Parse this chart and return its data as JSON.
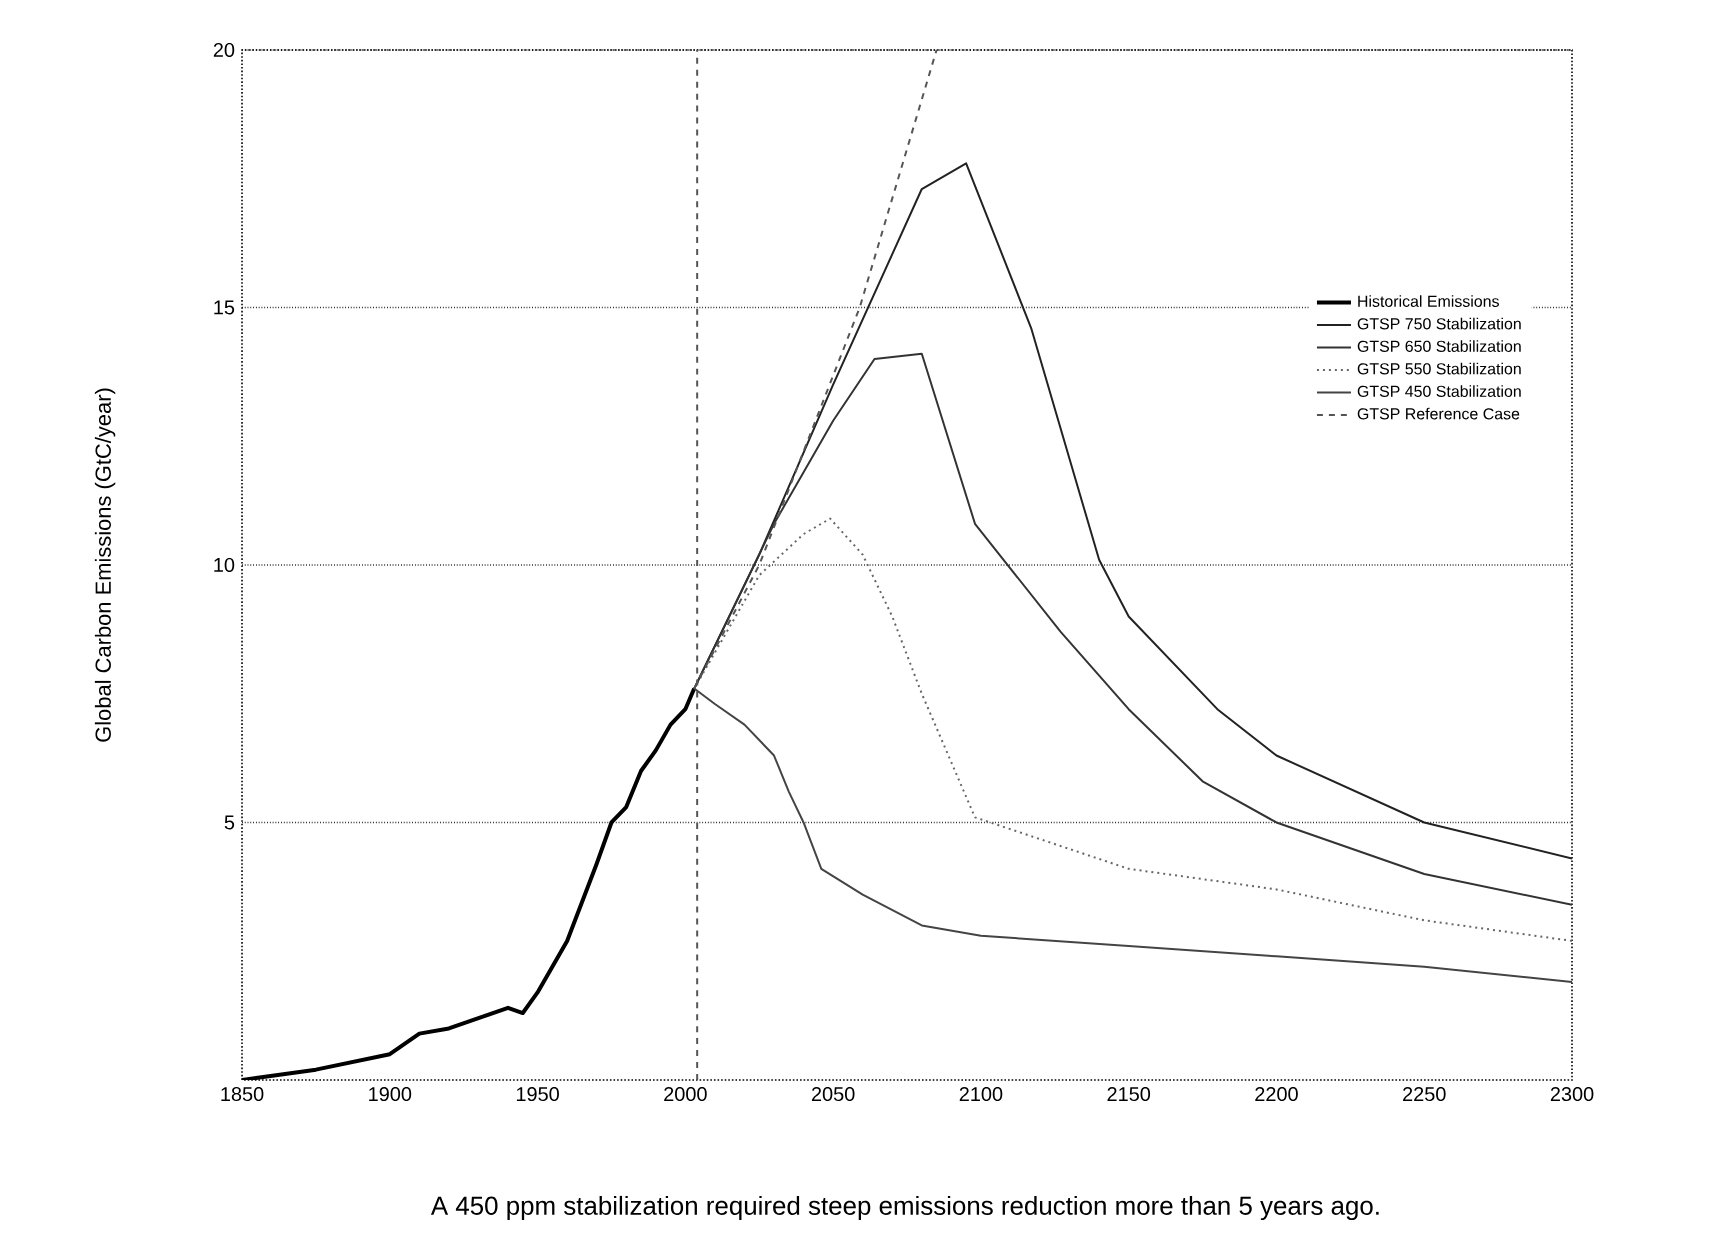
{
  "chart_data": {
    "type": "line",
    "ylabel": "Global Carbon Emissions (GtC/year)",
    "annotations": [
      "A 450 ppm stabilization required steep emissions reduction more than 5 years ago."
    ],
    "xlim": [
      1850,
      2300
    ],
    "xticks": [
      1850,
      1900,
      1950,
      2000,
      2050,
      2100,
      2150,
      2200,
      2250,
      2300
    ],
    "ylim": [
      0,
      20
    ],
    "yticks": [
      5,
      10,
      15,
      20
    ],
    "grid": "y",
    "legend": "right",
    "marker": "none",
    "ref_lines": [
      {
        "axis": "x",
        "value": 2004,
        "line_style": "dashed",
        "color": "#555555"
      }
    ],
    "series": [
      {
        "name": "Historical Emissions",
        "color": "#000000",
        "line_style": "solid",
        "x": [
          1850,
          1875,
          1900,
          1910,
          1920,
          1930,
          1940,
          1945,
          1950,
          1960,
          1970,
          1975,
          1980,
          1985,
          1990,
          1995,
          2000,
          2003
        ],
        "values": [
          0,
          0.2,
          0.5,
          0.9,
          1.0,
          1.2,
          1.4,
          1.3,
          1.7,
          2.7,
          4.2,
          5.0,
          5.3,
          6.0,
          6.4,
          6.9,
          7.2,
          7.6
        ]
      },
      {
        "name": "GTSP 750 Stabilization",
        "color": "#222222",
        "line_style": "solid",
        "x": [
          2003,
          2025,
          2050,
          2080,
          2095,
          2117,
          2140,
          2150,
          2180,
          2200,
          2250,
          2300
        ],
        "values": [
          7.6,
          10.2,
          13.5,
          17.3,
          17.8,
          14.6,
          10.1,
          9.0,
          7.2,
          6.3,
          5.0,
          4.3
        ]
      },
      {
        "name": "GTSP 650 Stabilization",
        "color": "#333333",
        "line_style": "solid",
        "x": [
          2003,
          2030,
          2050,
          2064,
          2080,
          2098,
          2127,
          2150,
          2175,
          2200,
          2250,
          2300
        ],
        "values": [
          7.6,
          10.8,
          12.8,
          14.0,
          14.1,
          10.8,
          8.7,
          7.2,
          5.8,
          5.0,
          4.0,
          3.4
        ]
      },
      {
        "name": "GTSP 550 Stabilization",
        "color": "#666666",
        "line_style": "dotted",
        "x": [
          2003,
          2025,
          2040,
          2049,
          2060,
          2070,
          2080,
          2098,
          2150,
          2200,
          2250,
          2300
        ],
        "values": [
          7.6,
          9.8,
          10.6,
          10.9,
          10.2,
          9.0,
          7.5,
          5.1,
          4.1,
          3.7,
          3.1,
          2.7
        ]
      },
      {
        "name": "GTSP 450 Stabilization",
        "color": "#444444",
        "line_style": "solid",
        "x": [
          2003,
          2010,
          2020,
          2030,
          2035,
          2040,
          2046,
          2060,
          2080,
          2100,
          2150,
          2200,
          2250,
          2300
        ],
        "values": [
          7.6,
          7.3,
          6.9,
          6.3,
          5.6,
          5.0,
          4.1,
          3.6,
          3.0,
          2.8,
          2.6,
          2.4,
          2.2,
          1.9
        ]
      },
      {
        "name": "GTSP Reference Case",
        "color": "#555555",
        "line_style": "dashed",
        "x": [
          2003,
          2025,
          2059,
          2085
        ],
        "values": [
          7.6,
          10.0,
          15.0,
          20.0
        ]
      }
    ]
  }
}
